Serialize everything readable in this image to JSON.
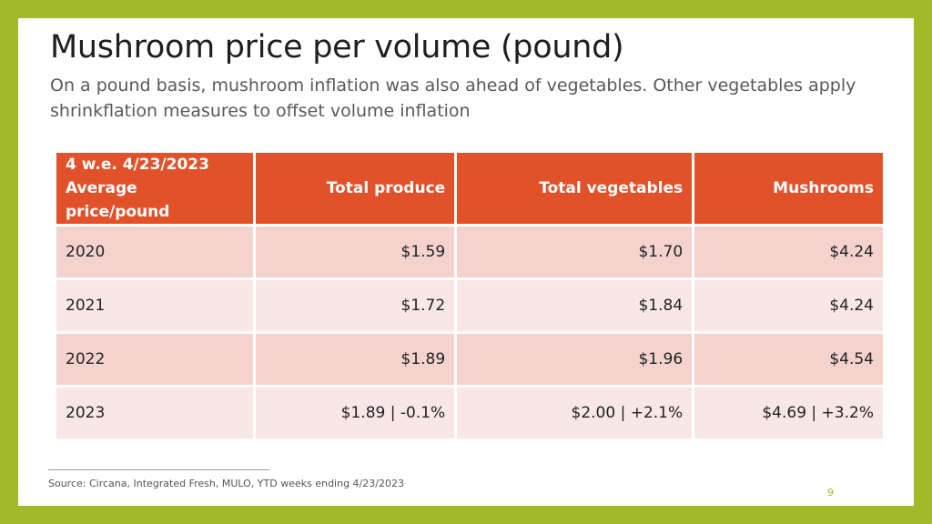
{
  "title": "Mushroom price per volume (pound)",
  "subtitle": "On a pound basis, mushroom inflation was also ahead of vegetables. Other vegetables apply shrinkflation measures to offset volume inflation",
  "table": {
    "header": {
      "col0_line1": "4 w.e. 4/23/2023",
      "col0_line2": "Average price/pound",
      "col1": "Total produce",
      "col2": "Total vegetables",
      "col3": "Mushrooms"
    },
    "rows": [
      {
        "year": "2020",
        "produce": "$1.59",
        "vegetables": "$1.70",
        "mushrooms": "$4.24"
      },
      {
        "year": "2021",
        "produce": "$1.72",
        "vegetables": "$1.84",
        "mushrooms": "$4.24"
      },
      {
        "year": "2022",
        "produce": "$1.89",
        "vegetables": "$1.96",
        "mushrooms": "$4.54"
      },
      {
        "year": "2023",
        "produce": "$1.89 | -0.1%",
        "vegetables": "$2.00 | +2.1%",
        "mushrooms": "$4.69 | +3.2%"
      }
    ]
  },
  "source": "Source: Circana, Integrated Fresh, MULO, YTD weeks ending 4/23/2023",
  "page_number": "9",
  "colors": {
    "frame": "#a2b928",
    "header_fill": "#e1522a",
    "row_dark": "#f4d3cf",
    "row_light": "#f9e7e5"
  }
}
